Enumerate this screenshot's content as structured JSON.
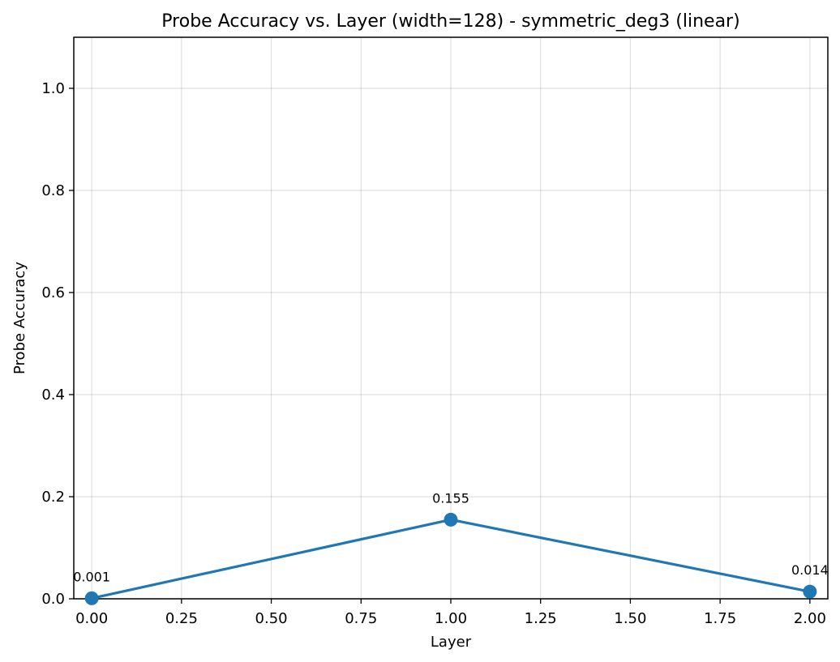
{
  "chart_data": {
    "type": "line",
    "title": "Probe Accuracy vs. Layer (width=128) - symmetric_deg3 (linear)",
    "xlabel": "Layer",
    "ylabel": "Probe Accuracy",
    "xlim": [
      -0.05,
      2.05
    ],
    "ylim": [
      0.0,
      1.1
    ],
    "xticks": [
      0.0,
      0.25,
      0.5,
      0.75,
      1.0,
      1.25,
      1.5,
      1.75,
      2.0
    ],
    "xtick_labels": [
      "0.00",
      "0.25",
      "0.50",
      "0.75",
      "1.00",
      "1.25",
      "1.50",
      "1.75",
      "2.00"
    ],
    "yticks": [
      0.0,
      0.2,
      0.4,
      0.6,
      0.8,
      1.0
    ],
    "ytick_labels": [
      "0.0",
      "0.2",
      "0.4",
      "0.6",
      "0.8",
      "1.0"
    ],
    "grid": true,
    "series": [
      {
        "color": "#1f77b4",
        "x": [
          0,
          1,
          2
        ],
        "y": [
          0.001,
          0.155,
          0.014
        ],
        "point_labels": [
          "0.001",
          "0.155",
          "0.014"
        ]
      }
    ]
  }
}
